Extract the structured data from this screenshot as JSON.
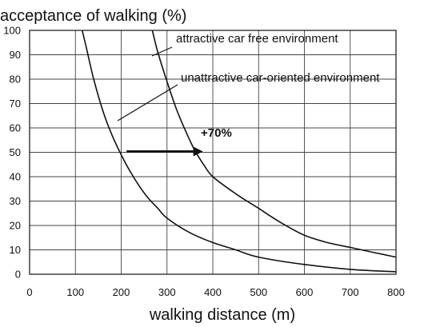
{
  "chart_data": {
    "type": "line",
    "title": "acceptance of walking (%)",
    "xlabel": "walking distance (m)",
    "ylabel": "",
    "xlim": [
      0,
      800
    ],
    "ylim": [
      0,
      100
    ],
    "x_ticks": [
      "0",
      "100",
      "200",
      "300",
      "400",
      "500",
      "600",
      "700",
      "800"
    ],
    "y_ticks": [
      "0",
      "10",
      "20",
      "30",
      "40",
      "50",
      "60",
      "70",
      "80",
      "90",
      "100"
    ],
    "grid": true,
    "series": [
      {
        "name": "attractive car free environment",
        "x": [
          268,
          280,
          300,
          320,
          340,
          360,
          380,
          400,
          450,
          500,
          550,
          600,
          650,
          700,
          750,
          800
        ],
        "y": [
          100,
          91,
          79,
          68,
          59,
          51,
          45,
          40,
          33,
          27,
          21,
          16,
          13,
          11,
          9,
          7
        ]
      },
      {
        "name": "unattractive car-oriented environment",
        "x": [
          115,
          125,
          140,
          160,
          180,
          200,
          220,
          240,
          260,
          280,
          300,
          350,
          400,
          450,
          500,
          600,
          700,
          800
        ],
        "y": [
          100,
          92,
          80,
          67,
          57,
          49,
          42,
          36,
          31,
          27,
          23,
          17,
          13,
          10,
          7,
          4,
          2,
          1
        ]
      }
    ],
    "annotations": [
      {
        "text": "+70%",
        "arrow_from": [
          215,
          51
        ],
        "arrow_to": [
          375,
          51
        ]
      }
    ]
  }
}
